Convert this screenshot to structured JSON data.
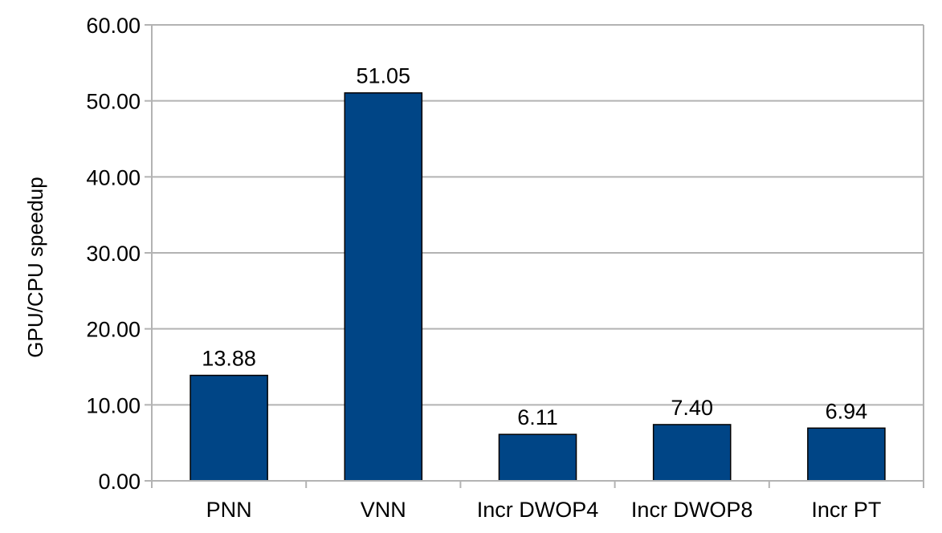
{
  "chart_data": {
    "type": "bar",
    "title": "",
    "xlabel": "",
    "ylabel": "GPU/CPU speedup",
    "categories": [
      "PNN",
      "VNN",
      "Incr DWOP4",
      "Incr DWOP8",
      "Incr PT"
    ],
    "values": [
      13.88,
      51.05,
      6.11,
      7.4,
      6.94
    ],
    "value_labels": [
      "13.88",
      "51.05",
      "6.11",
      "7.40",
      "6.94"
    ],
    "ylim": [
      0,
      60
    ],
    "yticks": [
      0,
      10,
      20,
      30,
      40,
      50,
      60
    ],
    "ytick_labels": [
      "0.00",
      "10.00",
      "20.00",
      "30.00",
      "40.00",
      "50.00",
      "60.00"
    ],
    "grid": true,
    "legend": "none",
    "bar_color": "#004586",
    "grid_color": "#b3b3b3"
  }
}
